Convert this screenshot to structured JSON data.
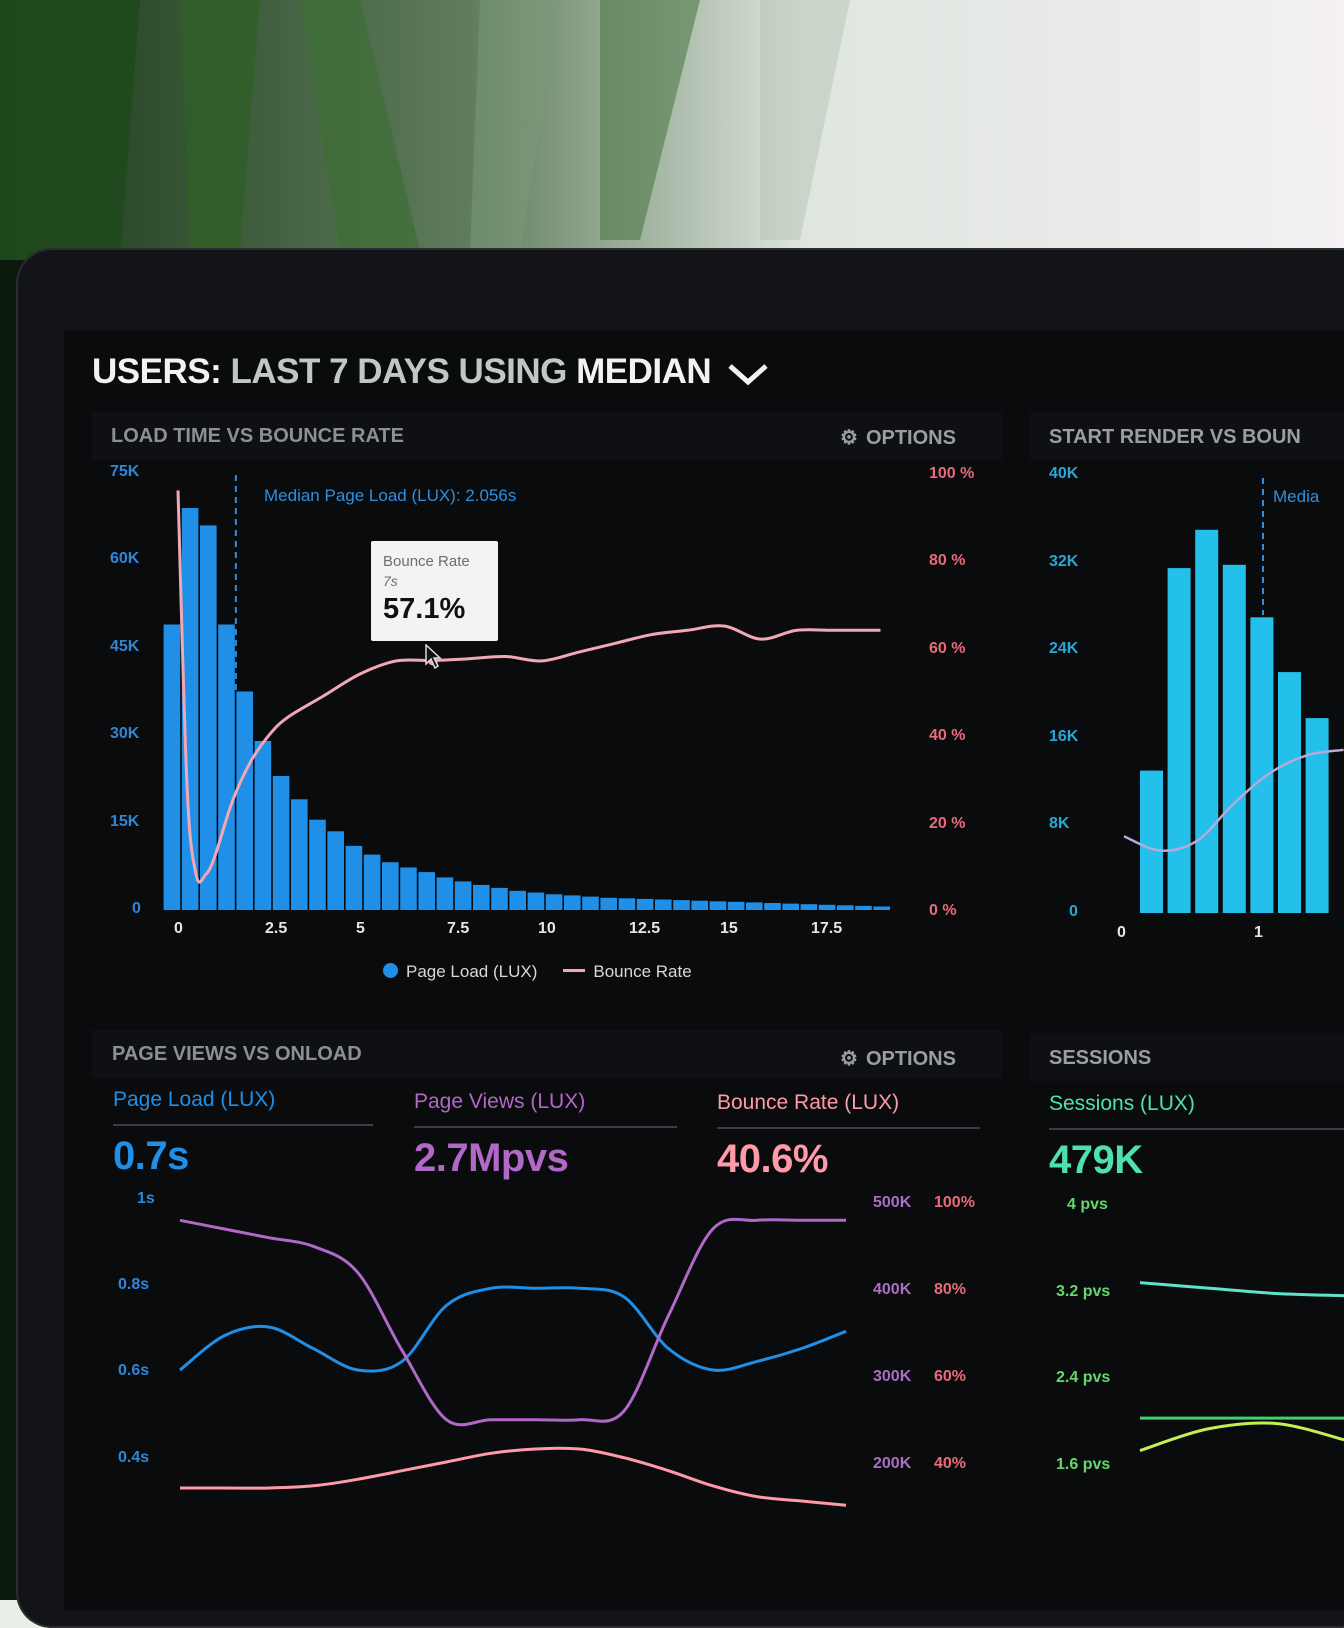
{
  "header": {
    "users_label": "USERS:",
    "period_label": "LAST 7 DAYS",
    "using_label": "USING",
    "method_label": "MEDIAN"
  },
  "panels": {
    "load_vs_bounce": {
      "title": "LOAD TIME VS BOUNCE RATE",
      "options_label": "OPTIONS",
      "median_annotation": "Median Page Load (LUX): 2.056s",
      "tooltip": {
        "title": "Bounce Rate",
        "x": "7s",
        "value": "57.1%"
      },
      "legend": {
        "series1": "Page Load (LUX)",
        "series2": "Bounce Rate"
      }
    },
    "start_render_vs_bounce": {
      "title": "START RENDER VS BOUN",
      "median_annotation": "Media"
    },
    "page_views_vs_onload": {
      "title": "PAGE VIEWS VS ONLOAD",
      "options_label": "OPTIONS",
      "metrics": [
        {
          "label": "Page Load (LUX)",
          "value": "0.7s",
          "color": "#1f8fe8"
        },
        {
          "label": "Page Views (LUX)",
          "value": "2.7Mpvs",
          "color": "#b168c6"
        },
        {
          "label": "Bounce Rate (LUX)",
          "value": "40.6%",
          "color": "#ff9aa8"
        }
      ]
    },
    "sessions": {
      "title": "SESSIONS",
      "metric": {
        "label": "Sessions (LUX)",
        "value": "479K",
        "color": "#4fe0b0"
      }
    }
  },
  "chart_data": [
    {
      "type": "bar",
      "name": "load-time-vs-bounce-rate",
      "x_ticks": [
        "0",
        "2.5",
        "5",
        "7.5",
        "10",
        "12.5",
        "15",
        "17.5"
      ],
      "y_left_ticks": [
        "0",
        "15K",
        "30K",
        "45K",
        "60K",
        "75K"
      ],
      "y_right_ticks": [
        "0 %",
        "20 %",
        "40 %",
        "60 %",
        "80 %",
        "100 %"
      ],
      "ylim_left": [
        0,
        75000
      ],
      "ylim_right": [
        0,
        100
      ],
      "x_start": -0.25,
      "x_step": 0.5,
      "series": [
        {
          "name": "Page Load (LUX)",
          "kind": "bar",
          "color": "#1f8fe8",
          "values": [
            49000,
            69000,
            66000,
            49000,
            37500,
            29000,
            23000,
            19000,
            15500,
            13500,
            11000,
            9500,
            8200,
            7300,
            6500,
            5600,
            4900,
            4300,
            3800,
            3300,
            3000,
            2700,
            2500,
            2300,
            2100,
            2000,
            1900,
            1800,
            1700,
            1600,
            1500,
            1400,
            1300,
            1200,
            1100,
            1000,
            900,
            800,
            700,
            600
          ]
        },
        {
          "name": "Bounce Rate",
          "kind": "line",
          "color": "#f2a7b5",
          "x": [
            0,
            0.25,
            0.5,
            0.75,
            1,
            1.5,
            2,
            2.5,
            3,
            4,
            5,
            6,
            7,
            8,
            9,
            10,
            11,
            12,
            13,
            14,
            15,
            16,
            17,
            18,
            19.3
          ],
          "values": [
            96,
            28,
            8,
            8,
            12,
            25,
            34,
            40,
            44,
            49,
            54,
            57,
            57.1,
            57.5,
            58,
            57,
            59,
            61,
            63,
            64,
            65,
            62,
            64,
            64,
            64
          ]
        }
      ]
    },
    {
      "type": "bar",
      "name": "start-render-vs-bounce",
      "x_ticks": [
        "0",
        "1"
      ],
      "y_left_ticks": [
        "0",
        "8K",
        "16K",
        "24K",
        "32K",
        "40K"
      ],
      "ylim_left": [
        0,
        40000
      ],
      "series": [
        {
          "name": "Start Render",
          "kind": "bar",
          "color": "#22c0ea",
          "values": [
            13000,
            31500,
            35000,
            31800,
            27000,
            22000,
            17800
          ]
        },
        {
          "name": "Bounce Rate",
          "kind": "line",
          "color": "#b8a9d6",
          "values": [
            7000,
            5700,
            6600,
            10000,
            12800,
            14400,
            14900
          ]
        }
      ]
    },
    {
      "type": "line",
      "name": "page-views-vs-onload",
      "y_left_ticks": [
        "0.4s",
        "0.6s",
        "0.8s",
        "1s"
      ],
      "y_mid_ticks": [
        "200K",
        "300K",
        "400K",
        "500K"
      ],
      "y_right_ticks": [
        "40%",
        "60%",
        "80%",
        "100%"
      ],
      "series": [
        {
          "name": "Page Load (LUX)",
          "color": "#1f8fe8",
          "unit": "s",
          "values": [
            0.6,
            0.68,
            0.7,
            0.65,
            0.6,
            0.62,
            0.75,
            0.79,
            0.79,
            0.79,
            0.77,
            0.65,
            0.6,
            0.62,
            0.65,
            0.69
          ]
        },
        {
          "name": "Page Views (LUX)",
          "color": "#b168c6",
          "unit": "K",
          "values": [
            480,
            470,
            460,
            450,
            420,
            330,
            250,
            250,
            250,
            250,
            260,
            370,
            470,
            480,
            480,
            480
          ]
        },
        {
          "name": "Bounce Rate (LUX)",
          "color": "#ff9aa8",
          "unit": "%",
          "values": [
            40,
            40,
            40,
            40.5,
            42,
            44,
            46,
            48,
            49,
            49,
            47,
            44,
            40.5,
            38,
            37,
            36
          ]
        }
      ]
    },
    {
      "type": "line",
      "name": "sessions",
      "y_left_ticks": [
        "1.6 pvs",
        "2.4 pvs",
        "3.2 pvs",
        "4 pvs"
      ],
      "series": [
        {
          "name": "series-a",
          "color": "#5fe3c8",
          "values": [
            3.2,
            3.15,
            3.1,
            3.08
          ]
        },
        {
          "name": "series-b",
          "color": "#3ed36a",
          "values": [
            1.95,
            1.95,
            1.95,
            1.95
          ]
        },
        {
          "name": "series-c",
          "color": "#c6ee55",
          "values": [
            1.65,
            1.85,
            1.9,
            1.75
          ]
        }
      ]
    }
  ]
}
